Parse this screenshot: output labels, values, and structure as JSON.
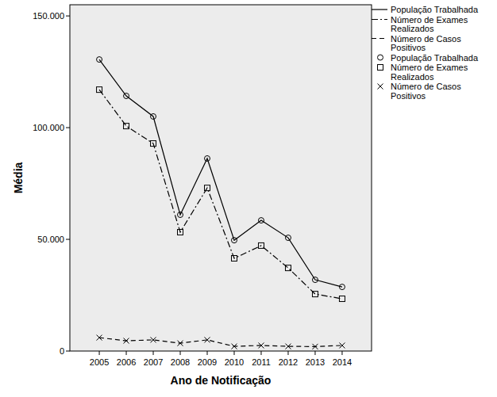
{
  "chart_data": {
    "type": "line",
    "x_label": "Ano de Notificação",
    "y_label": "Média",
    "categories": [
      "2005",
      "2006",
      "2007",
      "2008",
      "2009",
      "2010",
      "2011",
      "2012",
      "2013",
      "2014"
    ],
    "series": [
      {
        "name": "População Trabalhada",
        "color": "#000000",
        "marker": "circle",
        "line_style": "solid",
        "values": [
          130500,
          114200,
          105000,
          61000,
          86200,
          49600,
          58500,
          50700,
          31900,
          28700
        ]
      },
      {
        "name": "Número de Exames Realizados",
        "color": "#000000",
        "marker": "square",
        "line_style": "dashdot",
        "values": [
          117000,
          100700,
          92900,
          53200,
          73000,
          41500,
          47200,
          37200,
          25500,
          23400
        ]
      },
      {
        "name": "Número de Casos Positivos",
        "color": "#000000",
        "marker": "x",
        "line_style": "dashed",
        "values": [
          6000,
          4600,
          5000,
          3500,
          5000,
          2100,
          2500,
          2100,
          2000,
          2500
        ]
      }
    ],
    "ylim": [
      0,
      155000
    ],
    "yticks": [
      0,
      {
        "value": 50000,
        "label": "50.000"
      },
      {
        "value": 100000,
        "label": "100.000"
      },
      {
        "value": 150000,
        "label": "150.000"
      }
    ],
    "grid": false,
    "legend": "right"
  }
}
